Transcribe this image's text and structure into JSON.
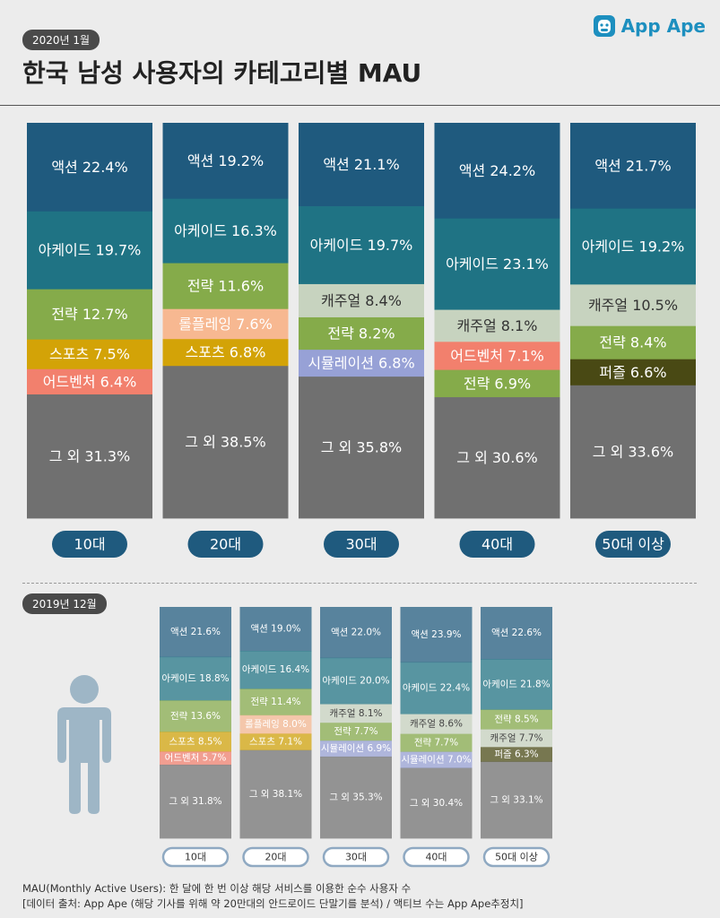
{
  "header": {
    "date": "2020년 1월",
    "title": "한국 남성 사용자의 카테고리별 MAU",
    "logo_text": "App Ape"
  },
  "secondary": {
    "date": "2019년 12월"
  },
  "footnotes": [
    "MAU(Monthly Active Users):  한 달에 한 번 이상 해당 서비스를 이용한 순수 사용자 수",
    "[데이터 출처: App Ape (해당 기사를 위해 약 20만대의 안드로이드 단말기를 분석) / 액티브 수는 App Ape추정치]"
  ],
  "icons": {
    "logo": "app-ape-logo-icon",
    "person": "person-icon"
  },
  "colors": {
    "액션": "#1f5a7e",
    "아케이드": "#1f7384",
    "전략": "#85ab4a",
    "롤플레잉": "#f7b891",
    "스포츠": "#d3a307",
    "어드벤처": "#f2806d",
    "캐주얼": "#c7d3bf",
    "시뮬레이션": "#97a1d6",
    "퍼즐": "#494914",
    "그 외": "#707070",
    "axis_pill": "#1f5a7e",
    "axis_pill_small": "#8fa9c2"
  },
  "chart_data": [
    {
      "type": "bar",
      "stacked": true,
      "period": "2020년 1월",
      "categories": [
        "10대",
        "20대",
        "30대",
        "40대",
        "50대 이상"
      ],
      "stacks": [
        [
          {
            "label": "액션",
            "value": 22.4
          },
          {
            "label": "아케이드",
            "value": 19.7
          },
          {
            "label": "전략",
            "value": 12.7
          },
          {
            "label": "스포츠",
            "value": 7.5
          },
          {
            "label": "어드벤처",
            "value": 6.4
          },
          {
            "label": "그 외",
            "value": 31.3
          }
        ],
        [
          {
            "label": "액션",
            "value": 19.2
          },
          {
            "label": "아케이드",
            "value": 16.3
          },
          {
            "label": "전략",
            "value": 11.6
          },
          {
            "label": "롤플레잉",
            "value": 7.6
          },
          {
            "label": "스포츠",
            "value": 6.8
          },
          {
            "label": "그 외",
            "value": 38.5
          }
        ],
        [
          {
            "label": "액션",
            "value": 21.1
          },
          {
            "label": "아케이드",
            "value": 19.7
          },
          {
            "label": "캐주얼",
            "value": 8.4
          },
          {
            "label": "전략",
            "value": 8.2
          },
          {
            "label": "시뮬레이션",
            "value": 6.8
          },
          {
            "label": "그 외",
            "value": 35.8
          }
        ],
        [
          {
            "label": "액션",
            "value": 24.2
          },
          {
            "label": "아케이드",
            "value": 23.1
          },
          {
            "label": "캐주얼",
            "value": 8.1
          },
          {
            "label": "어드벤처",
            "value": 7.1
          },
          {
            "label": "전략",
            "value": 6.9
          },
          {
            "label": "그 외",
            "value": 30.6
          }
        ],
        [
          {
            "label": "액션",
            "value": 21.7
          },
          {
            "label": "아케이드",
            "value": 19.2
          },
          {
            "label": "캐주얼",
            "value": 10.5
          },
          {
            "label": "전략",
            "value": 8.4
          },
          {
            "label": "퍼즐",
            "value": 6.6
          },
          {
            "label": "그 외",
            "value": 33.6
          }
        ]
      ],
      "ylim": [
        0,
        100
      ]
    },
    {
      "type": "bar",
      "stacked": true,
      "period": "2019년 12월",
      "categories": [
        "10대",
        "20대",
        "30대",
        "40대",
        "50대 이상"
      ],
      "stacks": [
        [
          {
            "label": "액션",
            "value": 21.6
          },
          {
            "label": "아케이드",
            "value": 18.8
          },
          {
            "label": "전략",
            "value": 13.6
          },
          {
            "label": "스포츠",
            "value": 8.5
          },
          {
            "label": "어드벤처",
            "value": 5.7
          },
          {
            "label": "그 외",
            "value": 31.8
          }
        ],
        [
          {
            "label": "액션",
            "value": 19.0
          },
          {
            "label": "아케이드",
            "value": 16.4
          },
          {
            "label": "전략",
            "value": 11.4
          },
          {
            "label": "롤플레잉",
            "value": 8.0
          },
          {
            "label": "스포츠",
            "value": 7.1
          },
          {
            "label": "그 외",
            "value": 38.1
          }
        ],
        [
          {
            "label": "액션",
            "value": 22.0
          },
          {
            "label": "아케이드",
            "value": 20.0
          },
          {
            "label": "캐주얼",
            "value": 8.1
          },
          {
            "label": "전략",
            "value": 7.7
          },
          {
            "label": "시뮬레이션",
            "value": 6.9
          },
          {
            "label": "그 외",
            "value": 35.3
          }
        ],
        [
          {
            "label": "액션",
            "value": 23.9
          },
          {
            "label": "아케이드",
            "value": 22.4
          },
          {
            "label": "캐주얼",
            "value": 8.6
          },
          {
            "label": "전략",
            "value": 7.7
          },
          {
            "label": "시뮬레이션",
            "value": 7.0
          },
          {
            "label": "그 외",
            "value": 30.4
          }
        ],
        [
          {
            "label": "액션",
            "value": 22.6
          },
          {
            "label": "아케이드",
            "value": 21.8
          },
          {
            "label": "전략",
            "value": 8.5
          },
          {
            "label": "캐주얼",
            "value": 7.7
          },
          {
            "label": "퍼즐",
            "value": 6.3
          },
          {
            "label": "그 외",
            "value": 33.1
          }
        ]
      ],
      "ylim": [
        0,
        100
      ]
    }
  ]
}
